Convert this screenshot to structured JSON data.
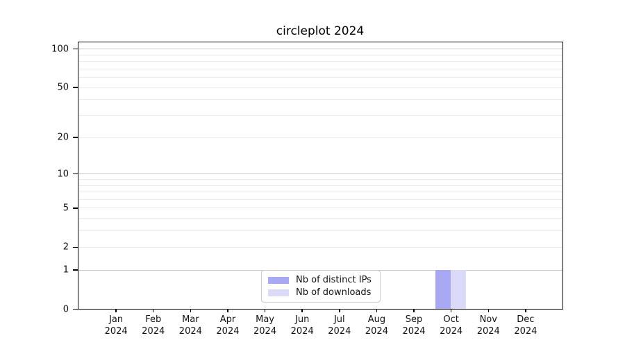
{
  "chart_data": {
    "type": "bar",
    "title": "circleplot 2024",
    "categories": [
      "Jan",
      "Feb",
      "Mar",
      "Apr",
      "May",
      "Jun",
      "Jul",
      "Aug",
      "Sep",
      "Oct",
      "Nov",
      "Dec"
    ],
    "category_year": "2024",
    "series": [
      {
        "name": "Nb of distinct IPs",
        "color": "#a8a8f4",
        "values": [
          0,
          0,
          0,
          0,
          0,
          0,
          0,
          0,
          0,
          1,
          0,
          0
        ]
      },
      {
        "name": "Nb of downloads",
        "color": "#dbdbf9",
        "values": [
          0,
          0,
          0,
          0,
          0,
          0,
          0,
          0,
          0,
          1,
          0,
          0
        ]
      }
    ],
    "xlabel": "",
    "ylabel": "",
    "yscale": "log1p",
    "ylim": [
      0,
      112
    ],
    "yticks": [
      0,
      1,
      2,
      5,
      10,
      20,
      50,
      100
    ],
    "gridlines_strong": [
      1,
      10,
      100
    ],
    "gridlines_faint": [
      2,
      3,
      4,
      5,
      6,
      7,
      8,
      9,
      20,
      30,
      40,
      50,
      60,
      70,
      80,
      90
    ],
    "grid": "horizontal",
    "legend": {
      "position": "lower center",
      "entries": [
        "Nb of distinct IPs",
        "Nb of downloads"
      ]
    },
    "colors": {
      "axis": "#000000",
      "grid_strong": "#c6c6c6",
      "grid_faint": "#eaeaea",
      "legend_border": "#cccccc",
      "background": "#ffffff"
    }
  }
}
